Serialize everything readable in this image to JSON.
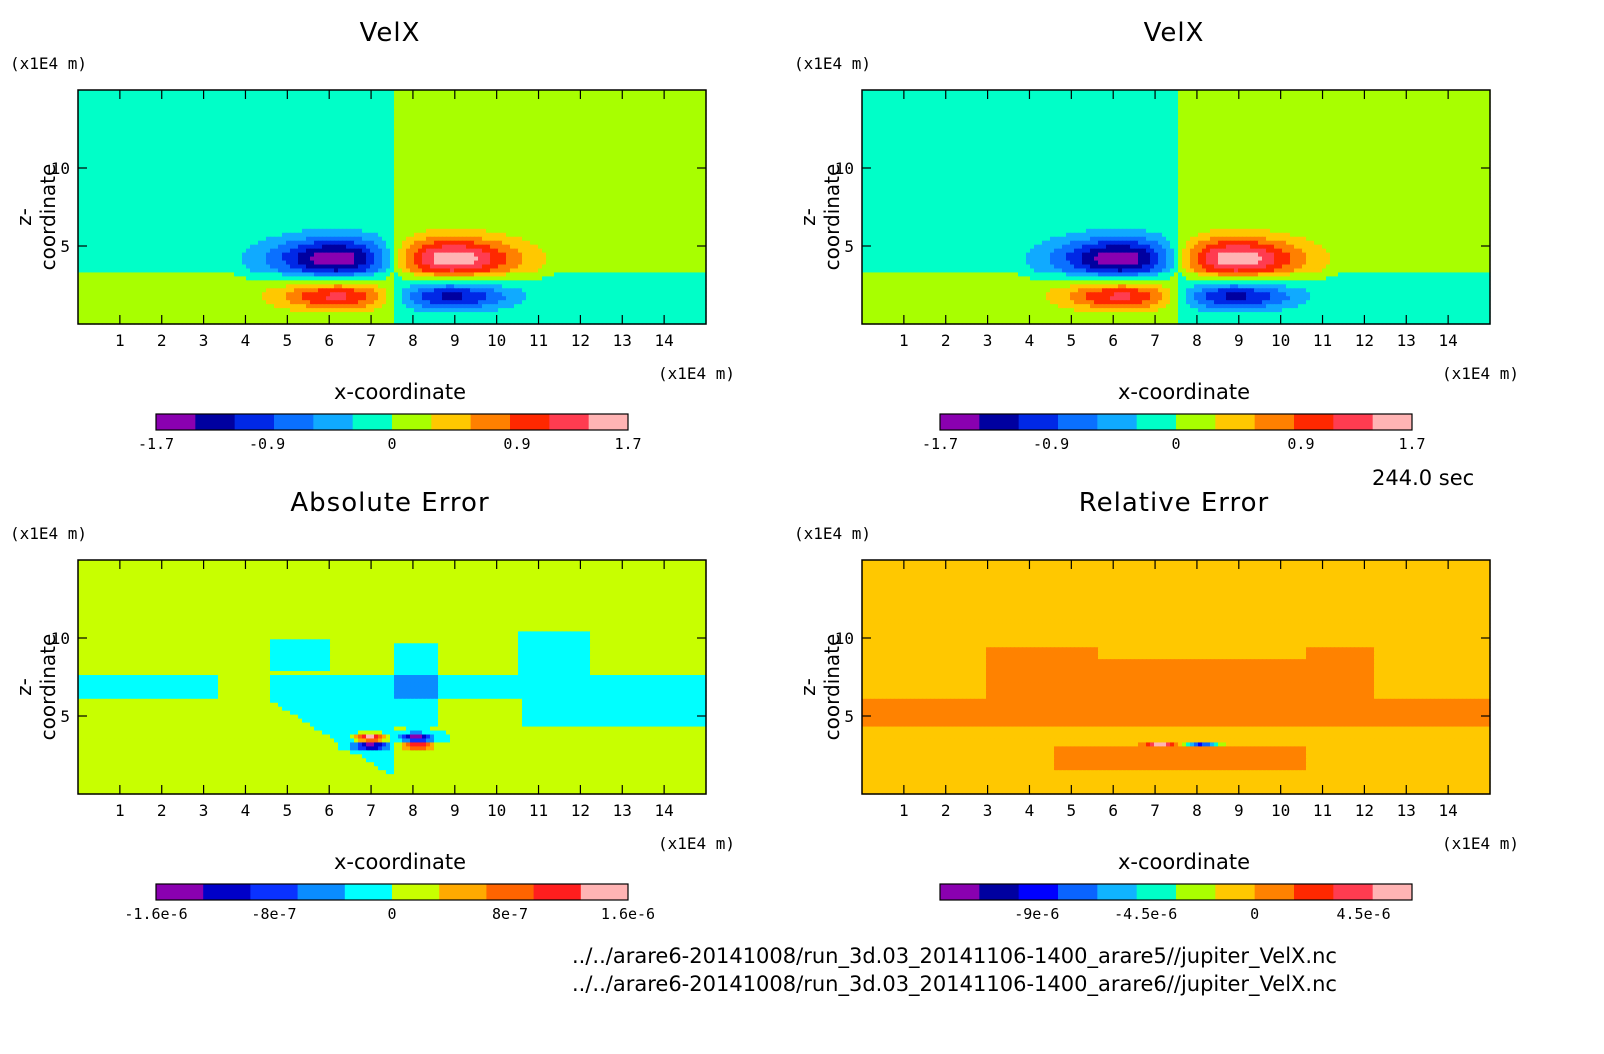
{
  "time_label": "244.0 sec",
  "files": [
    "../../arare6-20141008/run_3d.03_20141106-1400_arare5//jupiter_VelX.nc",
    "../../arare6-20141008/run_3d.03_20141106-1400_arare6//jupiter_VelX.nc"
  ],
  "chart_data": [
    {
      "type": "heatmap",
      "title": "VelX",
      "xlabel": "x-coordinate",
      "ylabel": "z-coordinate",
      "x_unit": "(x1E4 m)",
      "y_unit": "(x1E4 m)",
      "xlim": [
        0,
        15
      ],
      "ylim": [
        0,
        15
      ],
      "x_ticks": [
        1,
        2,
        3,
        4,
        5,
        6,
        7,
        8,
        9,
        10,
        11,
        12,
        13,
        14
      ],
      "y_ticks": [
        5,
        10
      ],
      "colorbar": {
        "min": -1.7,
        "max": 1.7,
        "tick_values": [
          -1.7,
          -0.9,
          0,
          0.9,
          1.7
        ],
        "tick_labels": [
          "-1.7",
          "-0.9",
          "0",
          "0.9",
          "1.7"
        ],
        "colors": [
          "#8a00b0",
          "#0000a0",
          "#0028e6",
          "#0a70ff",
          "#10aaff",
          "#00ffc8",
          "#a8ff00",
          "#ffc800",
          "#ff8000",
          "#ff2800",
          "#ff3c50",
          "#ffb4b4"
        ]
      },
      "field": "velx"
    },
    {
      "type": "heatmap",
      "title": "VelX",
      "xlabel": "x-coordinate",
      "ylabel": "z-coordinate",
      "x_unit": "(x1E4 m)",
      "y_unit": "(x1E4 m)",
      "xlim": [
        0,
        15
      ],
      "ylim": [
        0,
        15
      ],
      "x_ticks": [
        1,
        2,
        3,
        4,
        5,
        6,
        7,
        8,
        9,
        10,
        11,
        12,
        13,
        14
      ],
      "y_ticks": [
        5,
        10
      ],
      "colorbar": {
        "min": -1.7,
        "max": 1.7,
        "tick_values": [
          -1.7,
          -0.9,
          0,
          0.9,
          1.7
        ],
        "tick_labels": [
          "-1.7",
          "-0.9",
          "0",
          "0.9",
          "1.7"
        ],
        "colors": [
          "#8a00b0",
          "#0000a0",
          "#0028e6",
          "#0a70ff",
          "#10aaff",
          "#00ffc8",
          "#a8ff00",
          "#ffc800",
          "#ff8000",
          "#ff2800",
          "#ff3c50",
          "#ffb4b4"
        ]
      },
      "field": "velx"
    },
    {
      "type": "heatmap",
      "title": "Absolute Error",
      "xlabel": "x-coordinate",
      "ylabel": "z-coordinate",
      "x_unit": "(x1E4 m)",
      "y_unit": "(x1E4 m)",
      "xlim": [
        0,
        15
      ],
      "ylim": [
        0,
        15
      ],
      "x_ticks": [
        1,
        2,
        3,
        4,
        5,
        6,
        7,
        8,
        9,
        10,
        11,
        12,
        13,
        14
      ],
      "y_ticks": [
        5,
        10
      ],
      "colorbar": {
        "min": -1.6e-06,
        "max": 1.6e-06,
        "tick_values": [
          -1.6e-06,
          -8e-07,
          0,
          8e-07,
          1.6e-06
        ],
        "tick_labels": [
          "-1.6e-6",
          "-8e-7",
          "0",
          "8e-7",
          "1.6e-6"
        ],
        "colors": [
          "#8a00b0",
          "#0000c8",
          "#0a32ff",
          "#0a8cff",
          "#00ffff",
          "#c8ff00",
          "#ffaa00",
          "#ff6400",
          "#ff1e1e",
          "#ffb4b4"
        ]
      },
      "field": "abserr"
    },
    {
      "type": "heatmap",
      "title": "Relative Error",
      "xlabel": "x-coordinate",
      "ylabel": "z-coordinate",
      "x_unit": "(x1E4 m)",
      "y_unit": "(x1E4 m)",
      "xlim": [
        0,
        15
      ],
      "ylim": [
        0,
        15
      ],
      "x_ticks": [
        1,
        2,
        3,
        4,
        5,
        6,
        7,
        8,
        9,
        10,
        11,
        12,
        13,
        14
      ],
      "y_ticks": [
        5,
        10
      ],
      "colorbar": {
        "min": -1.3e-05,
        "max": 6.5e-06,
        "tick_values": [
          -9e-06,
          -4.5e-06,
          0,
          4.5e-06
        ],
        "tick_labels": [
          "-9e-6",
          "-4.5e-6",
          "0",
          "4.5e-6"
        ],
        "colors": [
          "#8a00b0",
          "#0000a0",
          "#0000ff",
          "#0a64ff",
          "#10b4ff",
          "#00ffc8",
          "#aaff00",
          "#ffc800",
          "#ff8200",
          "#ff2800",
          "#ff3c50",
          "#ffb4b4"
        ]
      },
      "field": "relerr"
    }
  ]
}
